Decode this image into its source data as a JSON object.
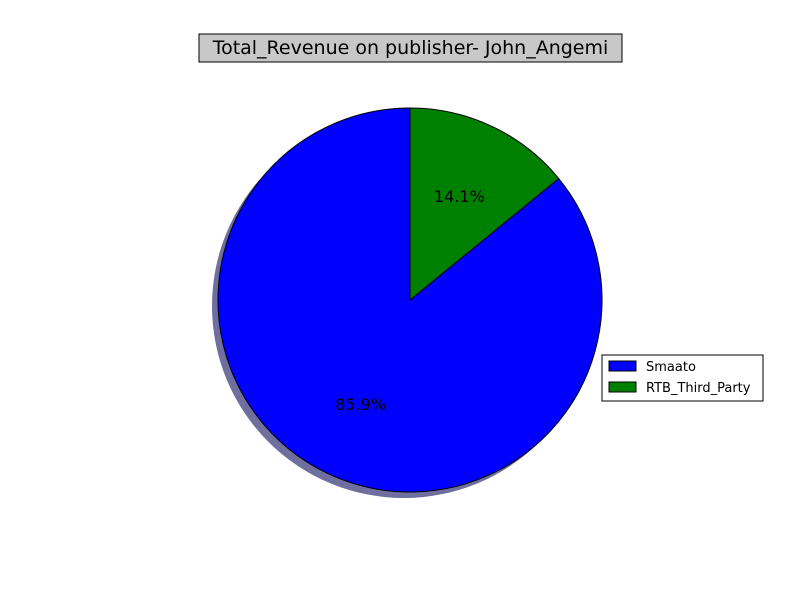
{
  "chart_data": {
    "type": "pie",
    "title": "Total_Revenue on publisher- John_Angemi",
    "labels": [
      "Smaato",
      "RTB_Third_Party"
    ],
    "values": [
      85.9,
      14.1
    ],
    "value_labels": [
      "85.9%",
      "14.1%"
    ],
    "colors": [
      "#0000ff",
      "#008000"
    ],
    "shadow": true,
    "start_angle_deg": 90,
    "direction": "counterclockwise",
    "legend_position": "right"
  },
  "colors": {
    "title_box": "#c8c8c8",
    "shadow": "#6f6f9f",
    "edge": "#000000"
  }
}
